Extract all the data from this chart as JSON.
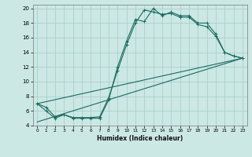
{
  "xlabel": "Humidex (Indice chaleur)",
  "background_color": "#cce8e4",
  "grid_color": "#aacfcc",
  "line_color": "#1a6b60",
  "xlim": [
    -0.5,
    23.5
  ],
  "ylim": [
    4,
    20.5
  ],
  "xticks": [
    0,
    1,
    2,
    3,
    4,
    5,
    6,
    7,
    8,
    9,
    10,
    11,
    12,
    13,
    14,
    15,
    16,
    17,
    18,
    19,
    20,
    21,
    22,
    23
  ],
  "yticks": [
    4,
    6,
    8,
    10,
    12,
    14,
    16,
    18,
    20
  ],
  "line1_x": [
    0,
    1,
    2,
    3,
    4,
    5,
    6,
    7,
    8,
    9,
    10,
    11,
    12,
    13,
    14,
    15,
    16,
    17,
    18,
    19,
    20,
    21,
    22,
    23
  ],
  "line1_y": [
    7,
    6,
    5,
    5.5,
    5,
    5,
    5,
    5,
    7.5,
    12,
    15.5,
    18.5,
    18.2,
    20,
    19,
    19.5,
    19,
    19,
    18,
    18,
    16.5,
    14,
    13.5,
    13.2
  ],
  "line2_x": [
    0,
    1,
    2,
    3,
    4,
    5,
    6,
    7,
    8,
    9,
    10,
    11,
    12,
    13,
    14,
    15,
    16,
    17,
    18,
    19,
    20,
    21,
    22,
    23
  ],
  "line2_y": [
    7,
    6.5,
    5.2,
    5.5,
    5.1,
    5.1,
    5.1,
    5.2,
    7.8,
    11.5,
    15,
    18.0,
    19.8,
    19.5,
    19.2,
    19.3,
    18.8,
    18.8,
    17.8,
    17.5,
    16.2,
    14.0,
    13.5,
    13.2
  ],
  "line3_x": [
    0,
    23
  ],
  "line3_y": [
    7,
    13.2
  ],
  "line4_x": [
    0,
    23
  ],
  "line4_y": [
    4.5,
    13.2
  ]
}
